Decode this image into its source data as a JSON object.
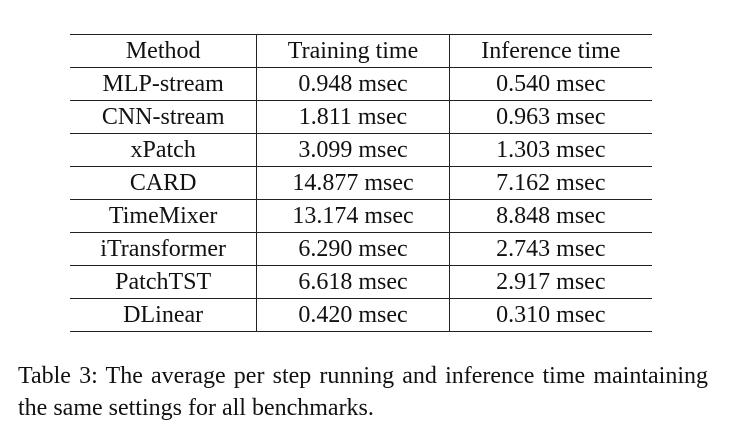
{
  "table": {
    "headers": [
      "Method",
      "Training time",
      "Inference time"
    ],
    "rows": [
      [
        "MLP-stream",
        "0.948 msec",
        "0.540 msec"
      ],
      [
        "CNN-stream",
        "1.811 msec",
        "0.963 msec"
      ],
      [
        "xPatch",
        "3.099 msec",
        "1.303 msec"
      ],
      [
        "CARD",
        "14.877 msec",
        "7.162 msec"
      ],
      [
        "TimeMixer",
        "13.174 msec",
        "8.848 msec"
      ],
      [
        "iTransformer",
        "6.290 msec",
        "2.743 msec"
      ],
      [
        "PatchTST",
        "6.618 msec",
        "2.917 msec"
      ],
      [
        "DLinear",
        "0.420 msec",
        "0.310 msec"
      ]
    ]
  },
  "caption": "Table 3: The average per step running and inference time maintaining the same settings for all benchmarks."
}
